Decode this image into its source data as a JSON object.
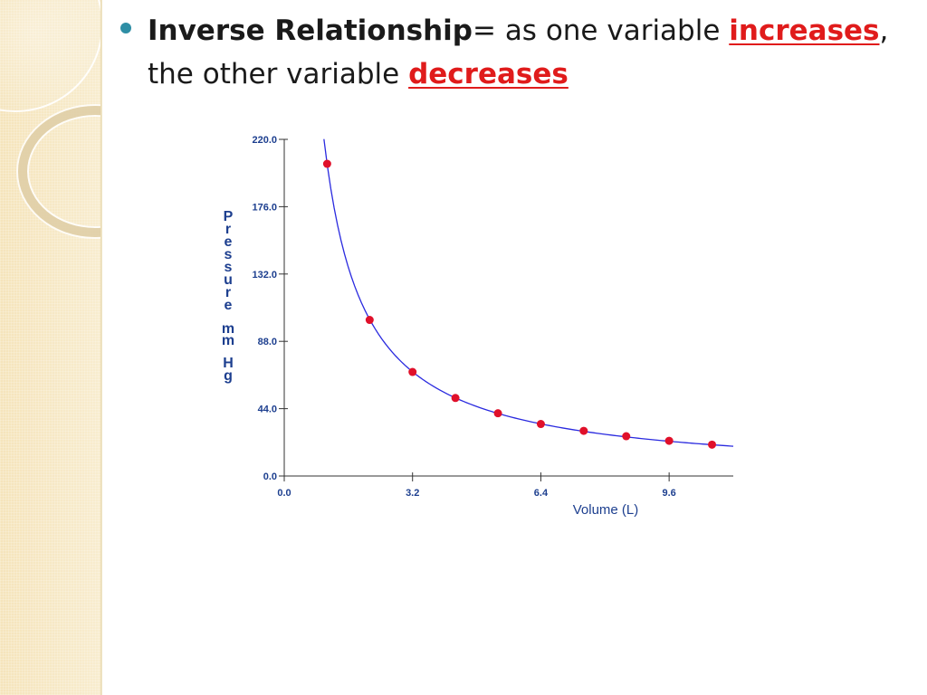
{
  "slide": {
    "term": "Inverse Relationship",
    "equals": "= as one variable ",
    "keyword_increases": "increases",
    "comma": ",",
    "line2_prefix": "the other variable ",
    "keyword_decreases": "decreases"
  },
  "colors": {
    "bullet": "#2e8ea5",
    "keyword": "#e01b1b",
    "axis_text": "#1d3f8f",
    "curve": "#2a2adf",
    "points": "#e0102a",
    "side_texture": "#f6e7c1"
  },
  "chart_data": {
    "type": "scatter",
    "title": "",
    "xlabel": "Volume (L)",
    "ylabel": "Pressure mm Hg",
    "xlim": [
      0.0,
      11.2
    ],
    "ylim": [
      0.0,
      220.0
    ],
    "x_ticks": [
      "0.0",
      "3.2",
      "6.4",
      "9.6"
    ],
    "y_ticks": [
      "220.0",
      "176.0",
      "132.0",
      "88.0",
      "44.0",
      "0.0"
    ],
    "grid": false,
    "legend": "none",
    "series": [
      {
        "values_x": [
          1.07,
          2.13,
          3.2,
          4.27,
          5.33,
          6.4,
          7.47,
          8.53,
          9.6,
          10.67
        ],
        "values_y": [
          204.0,
          102.0,
          68.0,
          51.0,
          41.0,
          34.0,
          29.5,
          26.0,
          23.0,
          20.5
        ]
      }
    ],
    "fit_curve": {
      "model": "inverse",
      "k": 218.0,
      "x_from": 0.99,
      "x_to": 11.2
    }
  }
}
